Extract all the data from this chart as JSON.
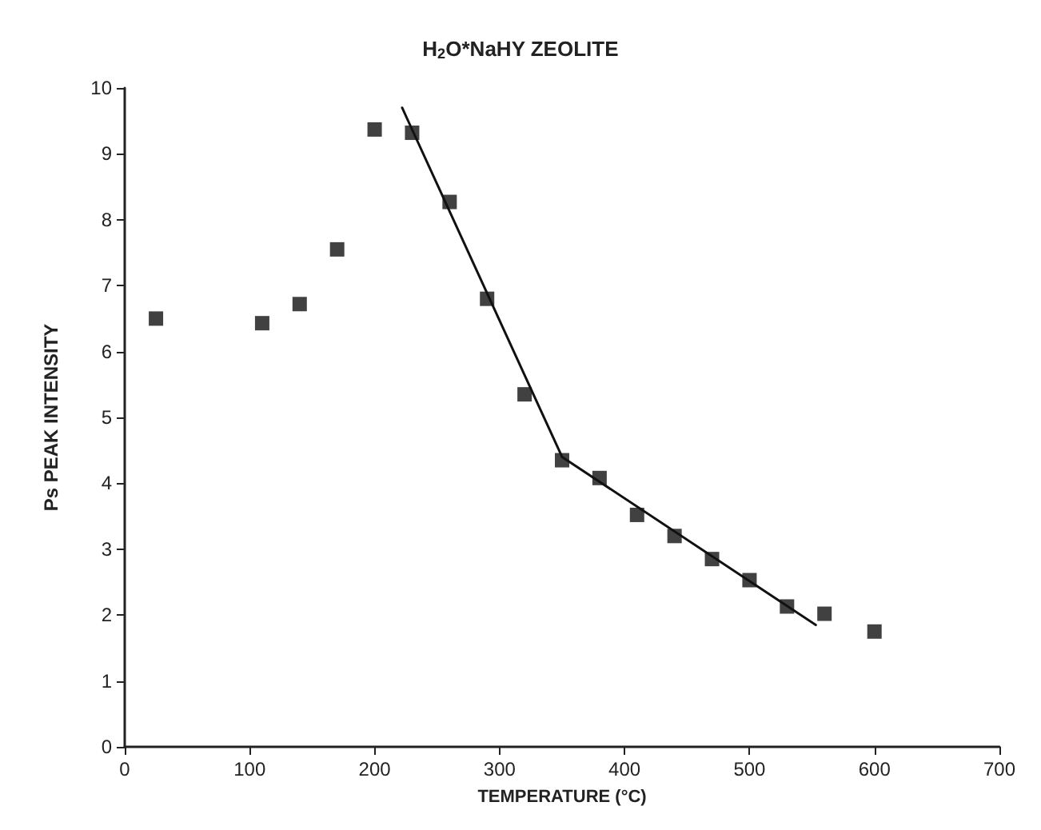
{
  "chart_data": {
    "type": "scatter",
    "title": "H$_{2}$O*NaHY ZEOLITE",
    "xlabel": "TEMPERATURE (°C)",
    "ylabel": "Ps PEAK INTENSITY",
    "x": [
      25,
      110,
      140,
      170,
      200,
      230,
      260,
      290,
      320,
      350,
      380,
      410,
      440,
      470,
      500,
      530,
      560,
      600
    ],
    "series": [
      {
        "color": "#111111",
        "values": [
          6.5,
          6.43,
          6.72,
          7.55,
          9.37,
          9.32,
          8.27,
          6.8,
          5.35,
          4.35,
          4.08,
          3.52,
          3.2,
          2.85,
          2.53,
          2.13,
          2.02,
          1.75
        ]
      },
      {
        "type": "line",
        "color": "#111111",
        "x": [
          222,
          350
        ],
        "values": [
          9.7,
          4.4
        ],
        "marker": "none"
      },
      {
        "type": "line",
        "color": "#111111",
        "x": [
          350,
          553
        ],
        "values": [
          4.4,
          1.85
        ],
        "marker": "none"
      }
    ],
    "xlim": [
      0,
      700
    ],
    "xticks": [
      0,
      100,
      200,
      300,
      400,
      500,
      600,
      700
    ],
    "ylim": [
      0,
      10
    ],
    "yticks": [
      0,
      1,
      2,
      3,
      4,
      5,
      6,
      7,
      8,
      9,
      10
    ],
    "grid": false,
    "marker": "square",
    "line_style": "solid"
  }
}
